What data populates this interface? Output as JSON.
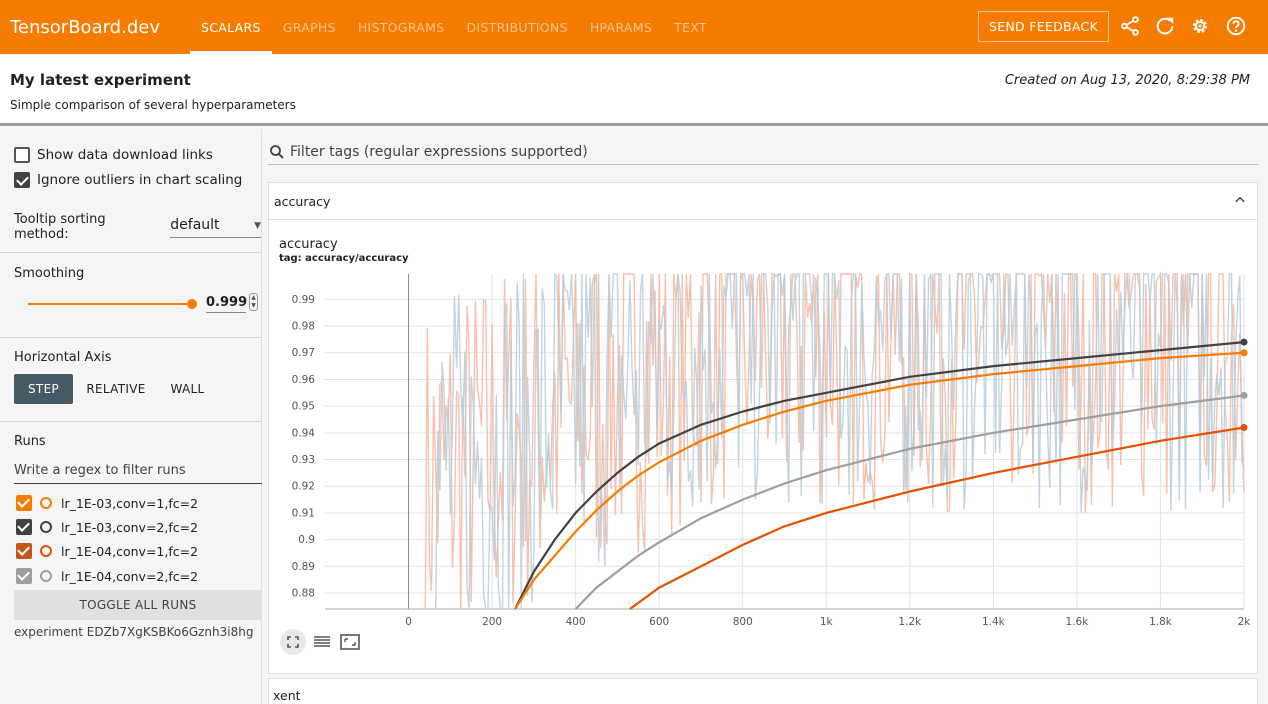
{
  "app": {
    "title": "TensorBoard.dev"
  },
  "nav": {
    "tabs": [
      {
        "label": "SCALARS",
        "active": true
      },
      {
        "label": "GRAPHS",
        "active": false
      },
      {
        "label": "HISTOGRAMS",
        "active": false
      },
      {
        "label": "DISTRIBUTIONS",
        "active": false
      },
      {
        "label": "HPARAMS",
        "active": false
      },
      {
        "label": "TEXT",
        "active": false
      }
    ],
    "feedback_label": "SEND FEEDBACK",
    "icons": [
      "share-icon",
      "refresh-icon",
      "settings-icon",
      "help-icon"
    ]
  },
  "experiment": {
    "title": "My latest experiment",
    "description": "Simple comparison of several hyperparameters",
    "created": "Created on Aug 13, 2020, 8:29:38 PM",
    "id_text": "experiment EDZb7XgKSBKo6Gznh3i8hg"
  },
  "sidebar": {
    "show_download_label": "Show data download links",
    "show_download_checked": false,
    "ignore_outliers_label": "Ignore outliers in chart scaling",
    "ignore_outliers_checked": true,
    "tooltip_sort_label": "Tooltip sorting method:",
    "tooltip_sort_value": "default",
    "smoothing_label": "Smoothing",
    "smoothing_value": "0.999",
    "smoothing_fraction": 0.999,
    "horizontal_axis_label": "Horizontal Axis",
    "axis_options": [
      {
        "label": "STEP",
        "active": true
      },
      {
        "label": "RELATIVE",
        "active": false
      },
      {
        "label": "WALL",
        "active": false
      }
    ],
    "runs_label": "Runs",
    "runs_filter_placeholder": "Write a regex to filter runs",
    "runs": [
      {
        "name": "lr_1E-03,conv=1,fc=2",
        "color": "#f57c00",
        "box_color": "#f57c00"
      },
      {
        "name": "lr_1E-03,conv=2,fc=2",
        "color": "#424242",
        "box_color": "#424242"
      },
      {
        "name": "lr_1E-04,conv=1,fc=2",
        "color": "#e65100",
        "box_color": "#c2571a"
      },
      {
        "name": "lr_1E-04,conv=2,fc=2",
        "color": "#9e9e9e",
        "box_color": "#9e9e9e"
      }
    ],
    "toggle_all_label": "TOGGLE ALL RUNS"
  },
  "main": {
    "filter_placeholder": "Filter tags (regular expressions supported)",
    "card_label": "accuracy",
    "second_card_label": "xent"
  },
  "chart_data": {
    "type": "line",
    "title": "accuracy",
    "subtitle": "tag: accuracy/accuracy",
    "xlim": [
      -200,
      2000
    ],
    "ylim": [
      0.874,
      0.9995
    ],
    "x_ticks": [
      0,
      200,
      400,
      600,
      800,
      1000,
      1200,
      1400,
      1600,
      1800,
      2000
    ],
    "x_tick_labels": [
      "0",
      "200",
      "400",
      "600",
      "800",
      "1k",
      "1.2k",
      "1.4k",
      "1.6k",
      "1.8k",
      "2k"
    ],
    "y_ticks": [
      0.88,
      0.89,
      0.9,
      0.91,
      0.92,
      0.93,
      0.94,
      0.95,
      0.96,
      0.97,
      0.98,
      0.99
    ],
    "y_tick_labels": [
      "0.88",
      "0.89",
      "0.9",
      "0.91",
      "0.92",
      "0.93",
      "0.94",
      "0.95",
      "0.96",
      "0.97",
      "0.98",
      "0.99"
    ],
    "grid": true,
    "series": [
      {
        "color": "#424242",
        "x": [
          255,
          300,
          350,
          400,
          450,
          500,
          550,
          600,
          700,
          800,
          900,
          1000,
          1200,
          1400,
          1600,
          1800,
          2000
        ],
        "values": [
          0.874,
          0.888,
          0.9,
          0.91,
          0.918,
          0.925,
          0.931,
          0.936,
          0.943,
          0.948,
          0.952,
          0.955,
          0.961,
          0.965,
          0.968,
          0.971,
          0.974
        ]
      },
      {
        "color": "#f57c00",
        "x": [
          255,
          300,
          350,
          400,
          450,
          500,
          550,
          600,
          700,
          800,
          900,
          1000,
          1200,
          1400,
          1600,
          1800,
          2000
        ],
        "values": [
          0.874,
          0.885,
          0.894,
          0.903,
          0.911,
          0.918,
          0.924,
          0.929,
          0.937,
          0.943,
          0.948,
          0.952,
          0.958,
          0.962,
          0.965,
          0.968,
          0.97
        ]
      },
      {
        "color": "#9e9e9e",
        "x": [
          400,
          450,
          500,
          550,
          600,
          700,
          800,
          900,
          1000,
          1200,
          1400,
          1600,
          1800,
          2000
        ],
        "values": [
          0.874,
          0.882,
          0.888,
          0.894,
          0.899,
          0.908,
          0.915,
          0.921,
          0.926,
          0.934,
          0.94,
          0.945,
          0.95,
          0.954
        ]
      },
      {
        "color": "#e65100",
        "x": [
          530,
          600,
          650,
          700,
          800,
          900,
          1000,
          1100,
          1200,
          1400,
          1600,
          1800,
          2000
        ],
        "values": [
          0.874,
          0.882,
          0.886,
          0.89,
          0.898,
          0.905,
          0.91,
          0.914,
          0.918,
          0.925,
          0.931,
          0.937,
          0.942
        ]
      }
    ],
    "raw_series_colors": [
      "#f4b6a0",
      "#b8ccd8"
    ]
  }
}
